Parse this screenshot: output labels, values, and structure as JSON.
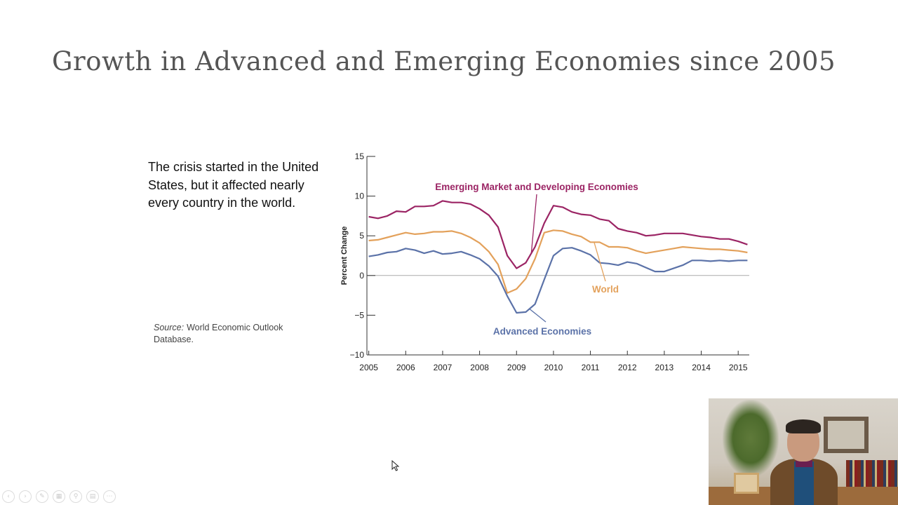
{
  "slide": {
    "title": "Growth in Advanced and Emerging Economies since 2005",
    "body": "The crisis started in the United States, but it affected nearly every country in the world.",
    "source_label": "Source:",
    "source_text": "World Economic Outlook Database."
  },
  "colors": {
    "emerging": "#9b2464",
    "world": "#e3a15b",
    "advanced": "#5b72a8",
    "axis": "#333333"
  },
  "chart_data": {
    "type": "line",
    "title": "",
    "xlabel": "",
    "ylabel": "Percent Change",
    "xlim": [
      2004.95,
      2015.3
    ],
    "ylim": [
      -10,
      15
    ],
    "yticks": [
      15,
      10,
      5,
      0,
      -5,
      -10
    ],
    "xticks": [
      "2005",
      "2006",
      "2007",
      "2008",
      "2009",
      "2010",
      "2011",
      "2012",
      "2013",
      "2014",
      "2015"
    ],
    "zero_line": true,
    "series": [
      {
        "name": "Emerging Market and Developing Economies",
        "color_key": "emerging",
        "x": [
          2005.0,
          2005.25,
          2005.5,
          2005.75,
          2006.0,
          2006.25,
          2006.5,
          2006.75,
          2007.0,
          2007.25,
          2007.5,
          2007.75,
          2008.0,
          2008.25,
          2008.5,
          2008.75,
          2009.0,
          2009.25,
          2009.5,
          2009.75,
          2010.0,
          2010.25,
          2010.5,
          2010.75,
          2011.0,
          2011.25,
          2011.5,
          2011.75,
          2012.0,
          2012.25,
          2012.5,
          2012.75,
          2013.0,
          2013.25,
          2013.5,
          2013.75,
          2014.0,
          2014.25,
          2014.5,
          2014.75,
          2015.0,
          2015.25
        ],
        "y": [
          7.4,
          7.2,
          7.5,
          8.1,
          8.0,
          8.7,
          8.7,
          8.8,
          9.4,
          9.2,
          9.2,
          9.0,
          8.4,
          7.6,
          6.1,
          2.5,
          0.9,
          1.6,
          3.6,
          6.6,
          8.8,
          8.6,
          8.0,
          7.7,
          7.6,
          7.1,
          6.9,
          5.9,
          5.6,
          5.4,
          5.0,
          5.1,
          5.3,
          5.3,
          5.3,
          5.1,
          4.9,
          4.8,
          4.6,
          4.6,
          4.3,
          3.9
        ]
      },
      {
        "name": "World",
        "color_key": "world",
        "x": [
          2005.0,
          2005.25,
          2005.5,
          2005.75,
          2006.0,
          2006.25,
          2006.5,
          2006.75,
          2007.0,
          2007.25,
          2007.5,
          2007.75,
          2008.0,
          2008.25,
          2008.5,
          2008.75,
          2009.0,
          2009.25,
          2009.5,
          2009.75,
          2010.0,
          2010.25,
          2010.5,
          2010.75,
          2011.0,
          2011.25,
          2011.5,
          2011.75,
          2012.0,
          2012.25,
          2012.5,
          2012.75,
          2013.0,
          2013.25,
          2013.5,
          2013.75,
          2014.0,
          2014.25,
          2014.5,
          2014.75,
          2015.0,
          2015.25
        ],
        "y": [
          4.4,
          4.5,
          4.8,
          5.1,
          5.4,
          5.2,
          5.3,
          5.5,
          5.5,
          5.6,
          5.3,
          4.8,
          4.1,
          3.0,
          1.4,
          -2.2,
          -1.7,
          -0.4,
          2.1,
          5.4,
          5.7,
          5.6,
          5.2,
          4.9,
          4.2,
          4.2,
          3.6,
          3.6,
          3.5,
          3.1,
          2.8,
          3.0,
          3.2,
          3.4,
          3.6,
          3.5,
          3.4,
          3.3,
          3.3,
          3.2,
          3.1,
          2.9
        ]
      },
      {
        "name": "Advanced Economies",
        "color_key": "advanced",
        "x": [
          2005.0,
          2005.25,
          2005.5,
          2005.75,
          2006.0,
          2006.25,
          2006.5,
          2006.75,
          2007.0,
          2007.25,
          2007.5,
          2007.75,
          2008.0,
          2008.25,
          2008.5,
          2008.75,
          2009.0,
          2009.25,
          2009.5,
          2009.75,
          2010.0,
          2010.25,
          2010.5,
          2010.75,
          2011.0,
          2011.25,
          2011.5,
          2011.75,
          2012.0,
          2012.25,
          2012.5,
          2012.75,
          2013.0,
          2013.25,
          2013.5,
          2013.75,
          2014.0,
          2014.25,
          2014.5,
          2014.75,
          2015.0,
          2015.25
        ],
        "y": [
          2.4,
          2.6,
          2.9,
          3.0,
          3.4,
          3.2,
          2.8,
          3.1,
          2.7,
          2.8,
          3.0,
          2.6,
          2.1,
          1.2,
          -0.1,
          -2.6,
          -4.7,
          -4.6,
          -3.6,
          -0.5,
          2.5,
          3.4,
          3.5,
          3.1,
          2.6,
          1.6,
          1.5,
          1.3,
          1.7,
          1.5,
          1.0,
          0.5,
          0.5,
          0.9,
          1.3,
          1.9,
          1.9,
          1.8,
          1.9,
          1.8,
          1.9,
          1.9
        ]
      }
    ],
    "annotations": [
      {
        "text": "Emerging Market and Developing Economies",
        "series": 0,
        "pointer_year": 2009.4
      },
      {
        "text": "World",
        "series": 1,
        "pointer_year": 2011.1
      },
      {
        "text": "Advanced Economies",
        "series": 2,
        "pointer_year": 2009.35
      }
    ]
  },
  "player_controls": [
    "previous",
    "next",
    "pen",
    "slides",
    "zoom",
    "subtitles",
    "more"
  ]
}
